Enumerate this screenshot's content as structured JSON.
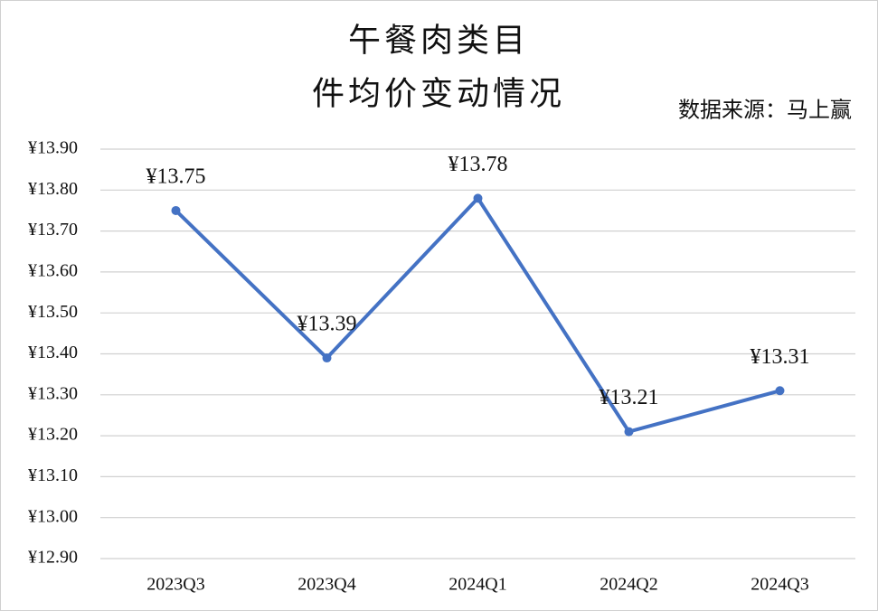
{
  "chart_data": {
    "type": "line",
    "title": "午餐肉类目",
    "subtitle": "件均价变动情况",
    "annotation": "数据来源：马上赢",
    "categories": [
      "2023Q3",
      "2023Q4",
      "2024Q1",
      "2024Q2",
      "2024Q3"
    ],
    "series": [
      {
        "name": "件均价",
        "color": "#4472c4",
        "values": [
          13.75,
          13.39,
          13.78,
          13.21,
          13.31
        ],
        "value_labels": [
          "¥13.75",
          "¥13.39",
          "¥13.78",
          "¥13.21",
          "¥13.31"
        ]
      }
    ],
    "ylim": [
      12.9,
      13.9
    ],
    "yticks": [
      {
        "value": 12.9,
        "label": "¥12.90"
      },
      {
        "value": 13.0,
        "label": "¥13.00"
      },
      {
        "value": 13.1,
        "label": "¥13.10"
      },
      {
        "value": 13.2,
        "label": "¥13.20"
      },
      {
        "value": 13.3,
        "label": "¥13.30"
      },
      {
        "value": 13.4,
        "label": "¥13.40"
      },
      {
        "value": 13.5,
        "label": "¥13.50"
      },
      {
        "value": 13.6,
        "label": "¥13.60"
      },
      {
        "value": 13.7,
        "label": "¥13.70"
      },
      {
        "value": 13.8,
        "label": "¥13.80"
      },
      {
        "value": 13.9,
        "label": "¥13.90"
      }
    ],
    "grid": true
  }
}
